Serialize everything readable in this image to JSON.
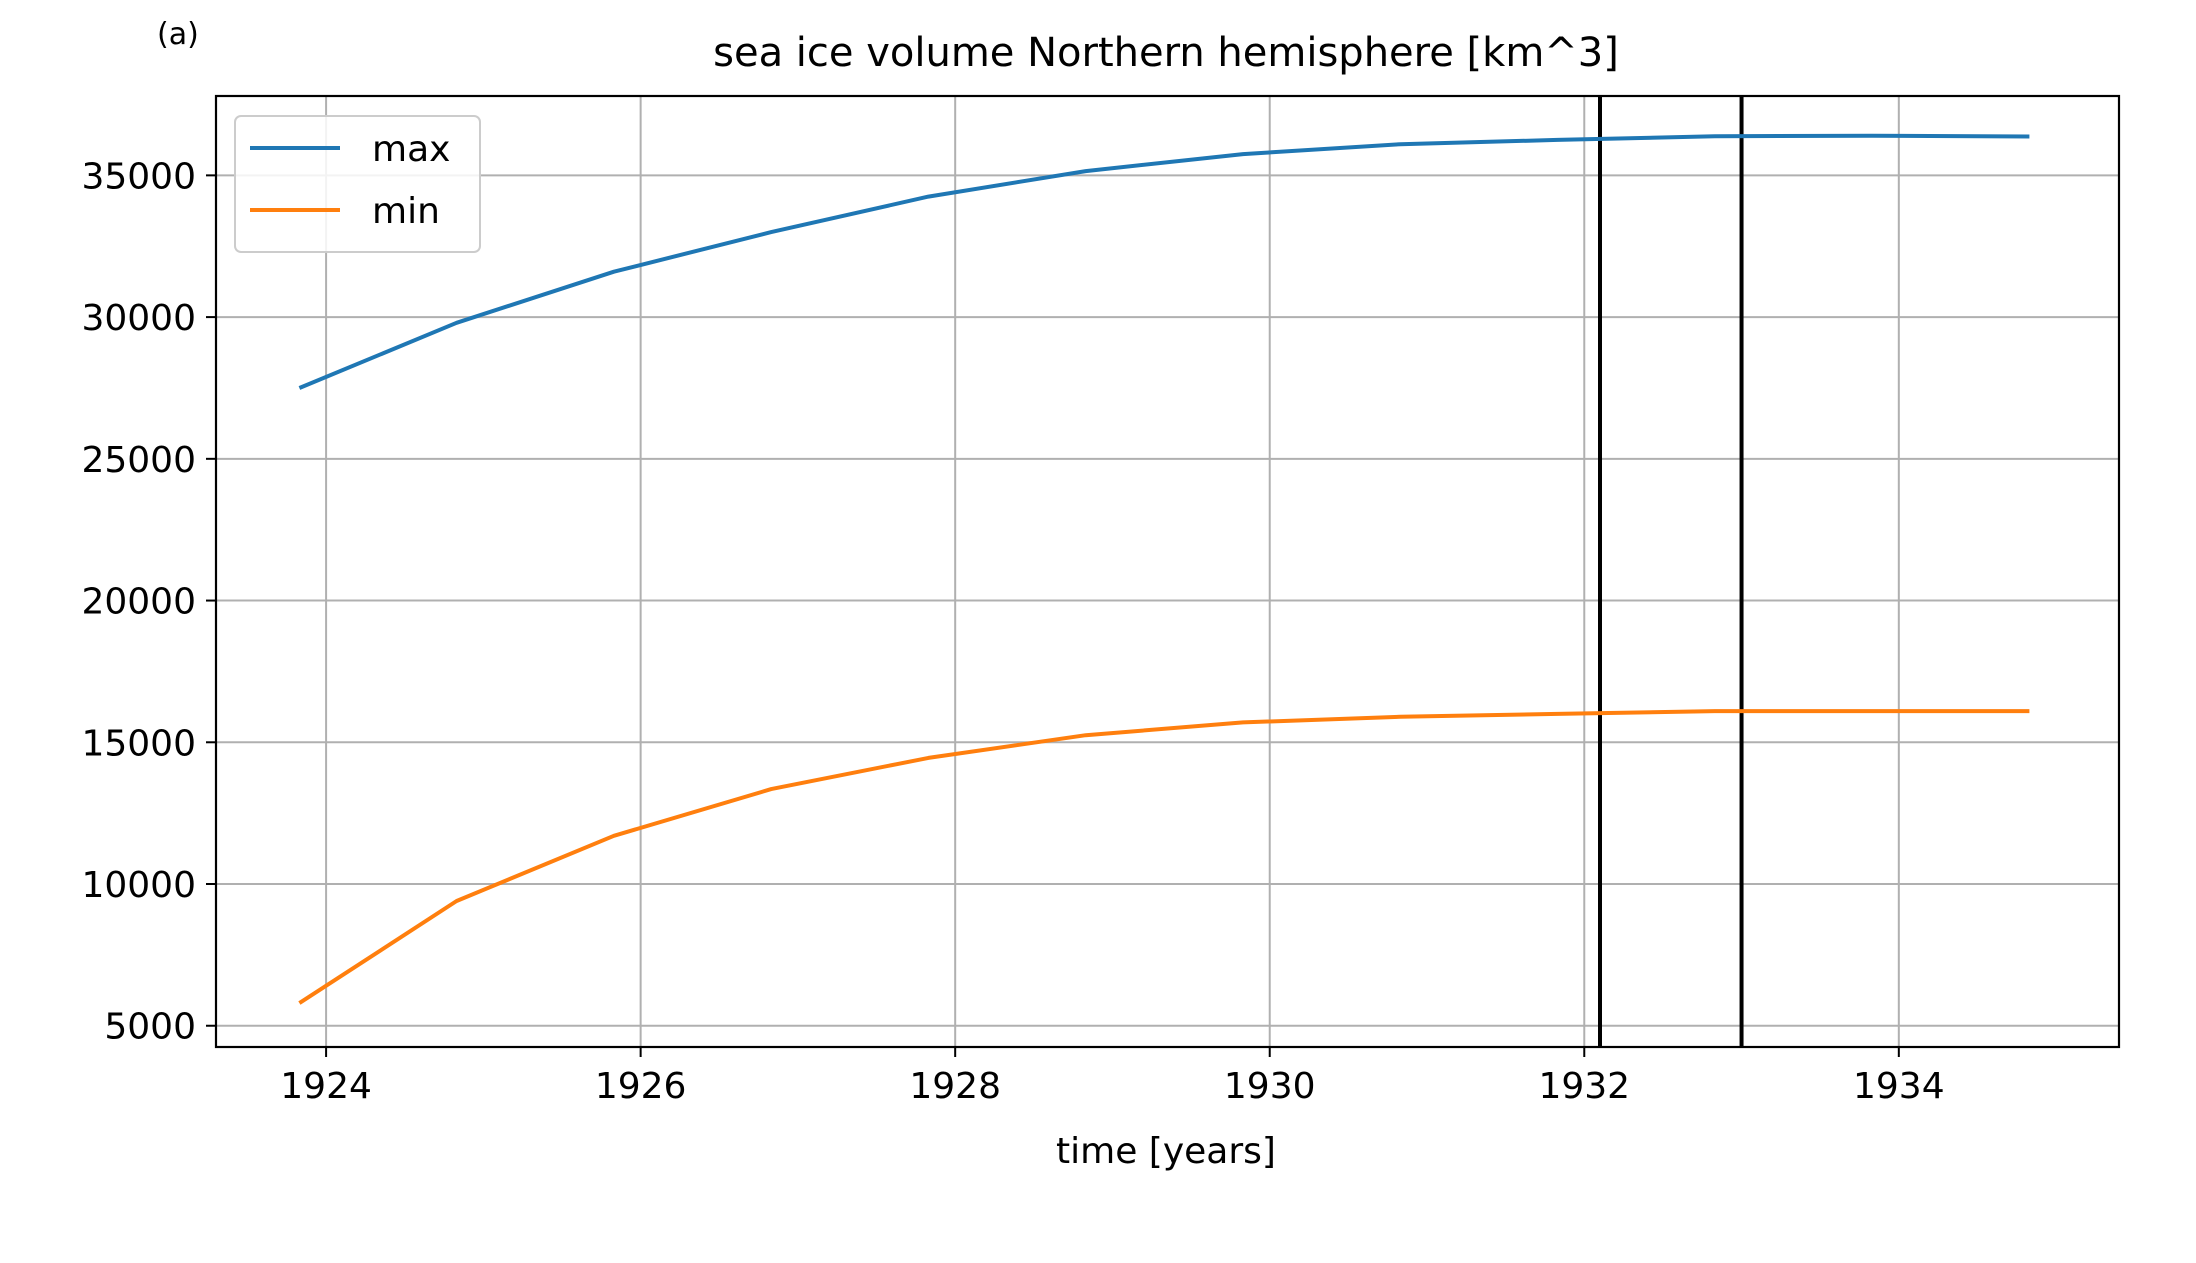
{
  "panel_label": "(a)",
  "chart_data": {
    "type": "line",
    "title": "sea ice volume Northern hemisphere [km^3]",
    "xlabel": "time [years]",
    "ylabel": "",
    "xlim": [
      1923.3,
      1935.4
    ],
    "ylim": [
      4250,
      37800
    ],
    "xticks": [
      1924,
      1926,
      1928,
      1930,
      1932,
      1934
    ],
    "yticks": [
      5000,
      10000,
      15000,
      20000,
      25000,
      30000,
      35000
    ],
    "grid": true,
    "legend_position": "top-left",
    "series": [
      {
        "name": "max",
        "color": "#1f77b4",
        "x": [
          1923.83,
          1924.83,
          1925.83,
          1926.83,
          1927.83,
          1928.83,
          1929.83,
          1930.83,
          1931.83,
          1932.83,
          1933.83,
          1934.83
        ],
        "y": [
          27500,
          29800,
          31600,
          33000,
          34250,
          35150,
          35750,
          36100,
          36250,
          36380,
          36400,
          36370
        ]
      },
      {
        "name": "min",
        "color": "#ff7f0e",
        "x": [
          1923.83,
          1924.83,
          1925.83,
          1926.83,
          1927.83,
          1928.83,
          1929.83,
          1930.83,
          1931.83,
          1932.83,
          1933.83,
          1934.83
        ],
        "y": [
          5800,
          9400,
          11700,
          13350,
          14450,
          15250,
          15700,
          15900,
          16000,
          16100,
          16100,
          16100
        ]
      }
    ],
    "vlines": [
      {
        "x": 1932.1,
        "color": "#000000"
      },
      {
        "x": 1933.0,
        "color": "#000000"
      }
    ]
  }
}
